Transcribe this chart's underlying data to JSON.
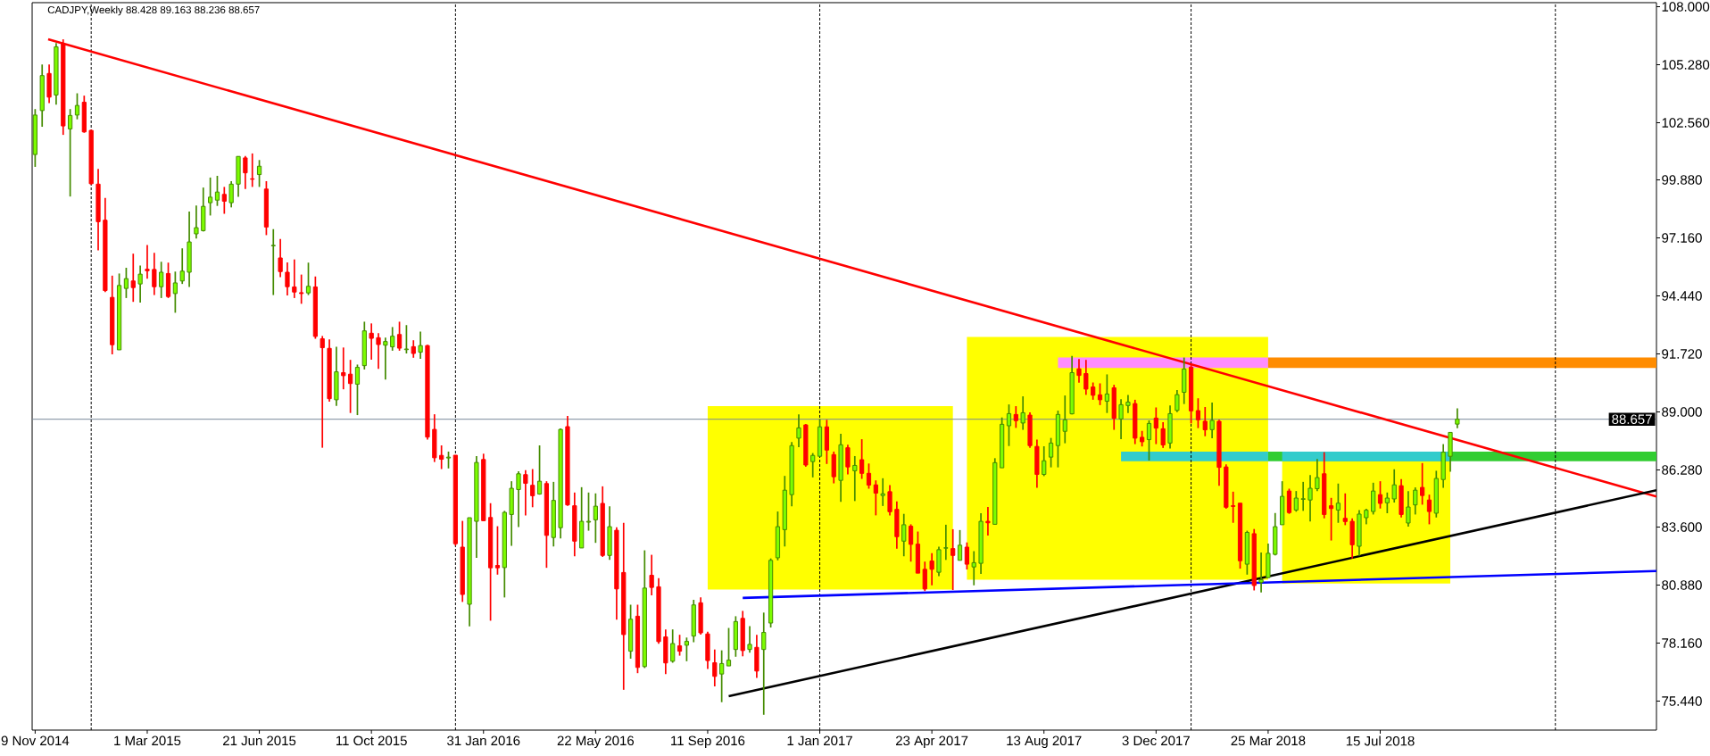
{
  "chart_data": {
    "type": "candlestick",
    "title": "CADJPY,Weekly 88.428 89.163 88.236 88.657",
    "x": [
      "2014-11-09",
      "2014-11-16",
      "2014-11-23",
      "2014-11-30",
      "2014-12-07",
      "2014-12-14",
      "2014-12-21",
      "2014-12-28",
      "2015-01-04",
      "2015-01-11",
      "2015-01-18",
      "2015-01-25",
      "2015-02-01",
      "2015-02-08",
      "2015-02-15",
      "2015-02-22",
      "2015-03-01",
      "2015-03-08",
      "2015-03-15",
      "2015-03-22",
      "2015-03-29",
      "2015-04-05",
      "2015-04-12",
      "2015-04-19",
      "2015-04-26",
      "2015-05-03",
      "2015-05-10",
      "2015-05-17",
      "2015-05-24",
      "2015-05-31",
      "2015-06-07",
      "2015-06-14",
      "2015-06-21",
      "2015-06-28",
      "2015-07-05",
      "2015-07-12",
      "2015-07-19",
      "2015-07-26",
      "2015-08-02",
      "2015-08-09",
      "2015-08-16",
      "2015-08-23",
      "2015-08-30",
      "2015-09-06",
      "2015-09-13",
      "2015-09-20",
      "2015-09-27",
      "2015-10-04",
      "2015-10-11",
      "2015-10-18",
      "2015-10-25",
      "2015-11-01",
      "2015-11-08",
      "2015-11-15",
      "2015-11-22",
      "2015-11-29",
      "2015-12-06",
      "2015-12-13",
      "2015-12-20",
      "2015-12-27",
      "2016-01-03",
      "2016-01-10",
      "2016-01-17",
      "2016-01-24",
      "2016-01-31",
      "2016-02-07",
      "2016-02-14",
      "2016-02-21",
      "2016-02-28",
      "2016-03-06",
      "2016-03-13",
      "2016-03-20",
      "2016-03-27",
      "2016-04-03",
      "2016-04-10",
      "2016-04-17",
      "2016-04-24",
      "2016-05-01",
      "2016-05-08",
      "2016-05-15",
      "2016-05-22",
      "2016-05-29",
      "2016-06-05",
      "2016-06-12",
      "2016-06-19",
      "2016-06-26",
      "2016-07-03",
      "2016-07-10",
      "2016-07-17",
      "2016-07-24",
      "2016-07-31",
      "2016-08-07",
      "2016-08-14",
      "2016-08-21",
      "2016-08-28",
      "2016-09-04",
      "2016-09-11",
      "2016-09-18",
      "2016-09-25",
      "2016-10-02",
      "2016-10-09",
      "2016-10-16",
      "2016-10-23",
      "2016-10-30",
      "2016-11-06",
      "2016-11-13",
      "2016-11-20",
      "2016-11-27",
      "2016-12-04",
      "2016-12-11",
      "2016-12-18",
      "2016-12-25",
      "2017-01-01",
      "2017-01-08",
      "2017-01-15",
      "2017-01-22",
      "2017-01-29",
      "2017-02-05",
      "2017-02-12",
      "2017-02-19",
      "2017-02-26",
      "2017-03-05",
      "2017-03-12",
      "2017-03-19",
      "2017-03-26",
      "2017-04-02",
      "2017-04-09",
      "2017-04-16",
      "2017-04-23",
      "2017-04-30",
      "2017-05-07",
      "2017-05-14",
      "2017-05-21",
      "2017-05-28",
      "2017-06-04",
      "2017-06-11",
      "2017-06-18",
      "2017-06-25",
      "2017-07-02",
      "2017-07-09",
      "2017-07-16",
      "2017-07-23",
      "2017-07-30",
      "2017-08-06",
      "2017-08-13",
      "2017-08-20",
      "2017-08-27",
      "2017-09-03",
      "2017-09-10",
      "2017-09-17",
      "2017-09-24",
      "2017-10-01",
      "2017-10-08",
      "2017-10-15",
      "2017-10-22",
      "2017-10-29",
      "2017-11-05",
      "2017-11-12",
      "2017-11-19",
      "2017-11-26",
      "2017-12-03",
      "2017-12-10",
      "2017-12-17",
      "2017-12-24",
      "2017-12-31",
      "2018-01-07",
      "2018-01-14",
      "2018-01-21",
      "2018-01-28",
      "2018-02-04",
      "2018-02-11",
      "2018-02-18",
      "2018-02-25",
      "2018-03-04",
      "2018-03-11",
      "2018-03-18",
      "2018-03-25",
      "2018-04-01",
      "2018-04-08",
      "2018-04-15",
      "2018-04-22",
      "2018-04-29",
      "2018-05-06",
      "2018-05-13",
      "2018-05-20",
      "2018-05-27",
      "2018-06-03",
      "2018-06-10",
      "2018-06-17",
      "2018-06-24",
      "2018-07-01",
      "2018-07-08",
      "2018-07-15",
      "2018-07-22",
      "2018-07-29",
      "2018-08-05",
      "2018-08-12",
      "2018-08-19",
      "2018-08-26",
      "2018-09-02",
      "2018-09-09",
      "2018-09-16",
      "2018-09-23",
      "2018-09-30"
    ],
    "ohlc": [
      [
        101.07,
        103.2,
        100.49,
        102.92
      ],
      [
        103.13,
        105.29,
        102.37,
        104.77
      ],
      [
        104.87,
        105.29,
        103.48,
        103.76
      ],
      [
        103.86,
        106.3,
        103.41,
        106.12
      ],
      [
        106.26,
        106.47,
        101.99,
        102.41
      ],
      [
        102.27,
        103.2,
        99.1,
        102.9
      ],
      [
        102.92,
        103.94,
        102.72,
        103.37
      ],
      [
        103.52,
        103.83,
        102.09,
        102.13
      ],
      [
        102.2,
        102.23,
        99.66,
        99.7
      ],
      [
        99.68,
        100.39,
        96.57,
        97.92
      ],
      [
        97.99,
        99.03,
        94.62,
        94.69
      ],
      [
        94.37,
        95.39,
        91.7,
        92.15
      ],
      [
        91.91,
        95.49,
        91.91,
        94.93
      ],
      [
        94.79,
        95.76,
        94.34,
        95.25
      ],
      [
        95.14,
        96.42,
        94.16,
        94.83
      ],
      [
        95.0,
        95.86,
        94.13,
        95.46
      ],
      [
        95.69,
        96.83,
        95.25,
        95.62
      ],
      [
        95.68,
        96.46,
        94.48,
        94.87
      ],
      [
        94.87,
        96.04,
        94.34,
        95.55
      ],
      [
        95.49,
        96.0,
        94.34,
        94.41
      ],
      [
        94.55,
        95.58,
        93.65,
        95.05
      ],
      [
        95.14,
        96.67,
        95.0,
        95.6
      ],
      [
        95.55,
        98.4,
        94.86,
        96.97
      ],
      [
        97.35,
        98.68,
        97.13,
        97.64
      ],
      [
        97.5,
        99.52,
        97.46,
        98.64
      ],
      [
        98.81,
        99.99,
        98.21,
        99.07
      ],
      [
        98.93,
        100.07,
        98.66,
        99.31
      ],
      [
        99.2,
        99.55,
        98.29,
        98.88
      ],
      [
        98.81,
        99.82,
        98.59,
        99.68
      ],
      [
        99.68,
        100.98,
        99.09,
        100.98
      ],
      [
        100.91,
        101.0,
        99.45,
        100.21
      ],
      [
        99.93,
        101.12,
        99.55,
        99.91
      ],
      [
        100.13,
        100.81,
        99.55,
        100.52
      ],
      [
        99.45,
        99.82,
        97.29,
        97.67
      ],
      [
        96.79,
        97.57,
        94.48,
        96.81
      ],
      [
        96.22,
        97.11,
        95.32,
        95.58
      ],
      [
        95.55,
        96.01,
        94.46,
        94.87
      ],
      [
        94.86,
        96.15,
        94.34,
        94.62
      ],
      [
        94.59,
        95.44,
        94.07,
        94.55
      ],
      [
        94.58,
        96.0,
        94.48,
        94.89
      ],
      [
        94.86,
        95.35,
        92.43,
        92.54
      ],
      [
        92.43,
        92.56,
        87.32,
        92.01
      ],
      [
        91.98,
        92.4,
        89.48,
        89.62
      ],
      [
        89.57,
        92.06,
        89.28,
        90.88
      ],
      [
        90.84,
        92.02,
        90.06,
        90.7
      ],
      [
        90.77,
        91.44,
        88.95,
        90.33
      ],
      [
        90.3,
        91.22,
        88.85,
        91.09
      ],
      [
        91.17,
        93.23,
        90.99,
        92.8
      ],
      [
        92.69,
        93.15,
        91.45,
        92.45
      ],
      [
        92.48,
        92.69,
        91.02,
        92.16
      ],
      [
        92.13,
        92.48,
        90.52,
        92.3
      ],
      [
        92.05,
        92.98,
        91.87,
        92.55
      ],
      [
        92.63,
        93.23,
        91.87,
        91.99
      ],
      [
        91.92,
        93.07,
        91.74,
        91.95
      ],
      [
        92.06,
        92.36,
        91.54,
        91.74
      ],
      [
        91.8,
        92.77,
        91.49,
        92.11
      ],
      [
        92.11,
        92.15,
        87.7,
        87.82
      ],
      [
        88.18,
        88.89,
        86.65,
        86.85
      ],
      [
        86.96,
        87.43,
        86.32,
        86.78
      ],
      [
        86.84,
        87.14,
        86.35,
        86.88
      ],
      [
        86.97,
        86.97,
        82.73,
        82.82
      ],
      [
        82.66,
        83.89,
        80.09,
        80.44
      ],
      [
        79.98,
        84.04,
        78.94,
        84.04
      ],
      [
        83.87,
        86.93,
        82.16,
        86.63
      ],
      [
        86.77,
        87.04,
        83.9,
        83.9
      ],
      [
        84.05,
        84.72,
        79.21,
        81.69
      ],
      [
        81.8,
        83.64,
        81.37,
        81.69
      ],
      [
        81.7,
        84.36,
        80.3,
        84.29
      ],
      [
        84.19,
        85.75,
        82.72,
        85.42
      ],
      [
        85.36,
        86.22,
        83.6,
        86.1
      ],
      [
        86.06,
        86.27,
        84.15,
        85.65
      ],
      [
        85.56,
        86.32,
        84.53,
        85.07
      ],
      [
        85.15,
        87.43,
        85.12,
        85.75
      ],
      [
        85.64,
        85.75,
        81.69,
        83.21
      ],
      [
        83.11,
        85.72,
        82.69,
        84.85
      ],
      [
        83.57,
        88.23,
        83.07,
        88.18
      ],
      [
        88.31,
        88.81,
        84.6,
        84.64
      ],
      [
        84.6,
        85.22,
        82.23,
        82.94
      ],
      [
        82.62,
        85.47,
        82.62,
        83.87
      ],
      [
        83.83,
        85.22,
        83.43,
        83.87
      ],
      [
        83.94,
        85.18,
        82.86,
        84.58
      ],
      [
        84.71,
        85.51,
        82.2,
        82.27
      ],
      [
        82.27,
        84.57,
        82.06,
        83.62
      ],
      [
        83.45,
        83.59,
        79.26,
        80.7
      ],
      [
        81.47,
        83.8,
        75.97,
        78.56
      ],
      [
        77.78,
        79.96,
        77.43,
        79.28
      ],
      [
        79.42,
        79.96,
        76.75,
        77.02
      ],
      [
        77.06,
        82.51,
        76.99,
        80.74
      ],
      [
        81.34,
        82.3,
        80.4,
        80.77
      ],
      [
        80.8,
        81.2,
        78.13,
        78.23
      ],
      [
        78.45,
        78.8,
        76.71,
        77.23
      ],
      [
        77.31,
        78.8,
        77.24,
        78.14
      ],
      [
        78.03,
        78.55,
        77.57,
        77.78
      ],
      [
        78.06,
        78.42,
        77.31,
        78.24
      ],
      [
        78.49,
        80.19,
        78.2,
        79.95
      ],
      [
        80.05,
        80.3,
        78.56,
        78.64
      ],
      [
        78.59,
        78.69,
        76.95,
        77.34
      ],
      [
        77.24,
        77.86,
        76.13,
        76.6
      ],
      [
        76.71,
        77.82,
        75.39,
        77.2
      ],
      [
        77.09,
        78.87,
        77.09,
        77.36
      ],
      [
        77.86,
        79.42,
        77.52,
        79.17
      ],
      [
        79.32,
        79.67,
        77.54,
        77.81
      ],
      [
        77.86,
        78.96,
        77.71,
        78.1
      ],
      [
        77.96,
        78.55,
        76.53,
        76.85
      ],
      [
        77.86,
        79.59,
        74.8,
        78.66
      ],
      [
        79.1,
        82.13,
        78.89,
        82.04
      ],
      [
        82.16,
        84.33,
        82.04,
        83.62
      ],
      [
        83.48,
        86.0,
        82.69,
        85.33
      ],
      [
        85.12,
        87.59,
        84.57,
        87.42
      ],
      [
        87.77,
        88.88,
        87.35,
        88.25
      ],
      [
        88.39,
        88.43,
        86.43,
        86.51
      ],
      [
        86.67,
        87.07,
        85.93,
        86.96
      ],
      [
        86.92,
        88.67,
        86.92,
        88.3
      ],
      [
        88.3,
        88.63,
        86.56,
        87.21
      ],
      [
        87.0,
        87.14,
        85.65,
        85.96
      ],
      [
        85.79,
        87.97,
        84.78,
        87.46
      ],
      [
        87.32,
        87.46,
        86.07,
        86.42
      ],
      [
        86.24,
        86.93,
        84.82,
        86.49
      ],
      [
        86.76,
        87.72,
        85.86,
        86.12
      ],
      [
        86.12,
        86.58,
        85.4,
        85.57
      ],
      [
        85.58,
        85.79,
        84.15,
        85.19
      ],
      [
        85.08,
        85.89,
        84.59,
        85.16
      ],
      [
        85.26,
        85.57,
        84.15,
        84.32
      ],
      [
        84.43,
        84.8,
        82.59,
        83.15
      ],
      [
        82.94,
        84.22,
        82.23,
        83.71
      ],
      [
        83.64,
        83.73,
        81.98,
        82.79
      ],
      [
        82.8,
        83.39,
        81.44,
        81.44
      ],
      [
        81.62,
        81.98,
        80.6,
        80.7
      ],
      [
        82.01,
        82.38,
        80.87,
        81.62
      ],
      [
        81.48,
        82.68,
        81.3,
        82.54
      ],
      [
        82.61,
        83.71,
        82.06,
        82.63
      ],
      [
        82.59,
        83.5,
        80.65,
        82.27
      ],
      [
        82.04,
        83.46,
        82.04,
        82.75
      ],
      [
        82.66,
        82.88,
        81.61,
        81.86
      ],
      [
        81.73,
        82.47,
        80.87,
        81.93
      ],
      [
        81.9,
        84.25,
        81.4,
        83.87
      ],
      [
        83.87,
        84.54,
        83.2,
        83.8
      ],
      [
        83.73,
        86.83,
        83.73,
        86.62
      ],
      [
        86.38,
        88.74,
        86.38,
        88.42
      ],
      [
        88.35,
        89.35,
        87.4,
        88.92
      ],
      [
        88.88,
        89.27,
        88.25,
        88.59
      ],
      [
        88.48,
        89.73,
        88.16,
        88.96
      ],
      [
        88.85,
        88.98,
        87.32,
        87.42
      ],
      [
        87.38,
        87.7,
        85.44,
        86.07
      ],
      [
        86.07,
        87.39,
        85.99,
        86.71
      ],
      [
        86.88,
        87.78,
        86.4,
        87.54
      ],
      [
        87.42,
        89.06,
        86.4,
        88.88
      ],
      [
        88.09,
        89.77,
        87.53,
        88.63
      ],
      [
        88.91,
        91.63,
        88.88,
        90.84
      ],
      [
        91.02,
        91.48,
        90.37,
        90.71
      ],
      [
        90.8,
        91.44,
        89.8,
        90.07
      ],
      [
        90.17,
        90.38,
        89.57,
        89.78
      ],
      [
        89.8,
        90.34,
        89.32,
        89.57
      ],
      [
        89.5,
        90.76,
        88.95,
        89.84
      ],
      [
        90.13,
        90.27,
        88.16,
        88.7
      ],
      [
        88.67,
        89.6,
        87.72,
        89.34
      ],
      [
        89.3,
        89.8,
        88.95,
        89.46
      ],
      [
        89.39,
        89.57,
        87.49,
        87.77
      ],
      [
        87.81,
        88.11,
        87.38,
        87.6
      ],
      [
        87.7,
        88.6,
        86.72,
        88.46
      ],
      [
        88.71,
        89.21,
        87.49,
        88.24
      ],
      [
        88.21,
        88.52,
        87.31,
        87.45
      ],
      [
        87.54,
        89.3,
        87.28,
        88.92
      ],
      [
        89.07,
        90.02,
        88.99,
        89.81
      ],
      [
        89.92,
        91.55,
        89.37,
        91.01
      ],
      [
        91.1,
        91.24,
        88.46,
        89.05
      ],
      [
        89.06,
        89.64,
        88.24,
        88.63
      ],
      [
        88.56,
        89.23,
        87.86,
        88.16
      ],
      [
        88.17,
        89.44,
        87.77,
        88.6
      ],
      [
        88.56,
        88.63,
        85.54,
        86.4
      ],
      [
        86.42,
        86.54,
        84.46,
        84.53
      ],
      [
        84.6,
        85.26,
        83.8,
        84.57
      ],
      [
        84.72,
        84.72,
        81.65,
        82.02
      ],
      [
        81.86,
        83.43,
        81.37,
        83.35
      ],
      [
        83.29,
        83.51,
        80.63,
        80.86
      ],
      [
        81.01,
        82.41,
        80.53,
        81.13
      ],
      [
        81.23,
        82.83,
        81.23,
        82.37
      ],
      [
        82.32,
        84.26,
        82.27,
        83.62
      ],
      [
        83.71,
        85.75,
        83.71,
        85.04
      ],
      [
        85.29,
        85.4,
        84.22,
        84.28
      ],
      [
        84.4,
        85.29,
        84.32,
        84.96
      ],
      [
        84.9,
        85.72,
        84.36,
        84.93
      ],
      [
        84.87,
        86.04,
        83.86,
        85.42
      ],
      [
        85.4,
        86.79,
        85.29,
        85.92
      ],
      [
        86.1,
        87.11,
        84.01,
        84.19
      ],
      [
        84.6,
        84.97,
        82.97,
        84.47
      ],
      [
        84.4,
        85.64,
        83.8,
        84.72
      ],
      [
        84.01,
        85.18,
        83.69,
        83.86
      ],
      [
        83.87,
        84.01,
        82.13,
        82.77
      ],
      [
        82.7,
        84.4,
        82.25,
        84.21
      ],
      [
        84.04,
        84.46,
        83.73,
        84.39
      ],
      [
        84.33,
        85.68,
        84.19,
        85.29
      ],
      [
        85.12,
        85.75,
        84.47,
        84.71
      ],
      [
        84.74,
        85.22,
        84.25,
        84.96
      ],
      [
        84.92,
        86.31,
        84.75,
        85.58
      ],
      [
        85.54,
        85.85,
        84.05,
        84.19
      ],
      [
        83.79,
        85.29,
        83.62,
        84.54
      ],
      [
        84.64,
        85.46,
        84.19,
        85.33
      ],
      [
        85.46,
        86.6,
        84.65,
        85.08
      ],
      [
        84.87,
        85.12,
        83.73,
        84.33
      ],
      [
        84.25,
        86.24,
        84.05,
        85.88
      ],
      [
        85.83,
        87.49,
        85.44,
        87.11
      ],
      [
        86.92,
        88.04,
        86.2,
        88.04
      ],
      [
        88.428,
        89.163,
        88.236,
        88.657
      ]
    ],
    "colors": [
      "#7cfc00",
      "#7cfc00",
      "#ff0000",
      "#7cfc00",
      "#ff0000",
      "#7cfc00",
      "#7cfc00",
      "#ff0000",
      "#ff0000",
      "#ff0000",
      "#ff0000",
      "#ff0000",
      "#7cfc00",
      "#7cfc00",
      "#ff0000",
      "#7cfc00",
      "#ff0000",
      "#ff0000",
      "#7cfc00",
      "#ff0000",
      "#7cfc00",
      "#7cfc00",
      "#7cfc00",
      "#7cfc00",
      "#7cfc00",
      "#7cfc00",
      "#7cfc00",
      "#ff0000",
      "#7cfc00",
      "#7cfc00",
      "#ff0000",
      "#ff0000",
      "#7cfc00",
      "#ff0000",
      "#7cfc00",
      "#ff0000",
      "#ff0000",
      "#ff0000",
      "#ff0000",
      "#7cfc00",
      "#ff0000",
      "#ff0000",
      "#ff0000",
      "#7cfc00",
      "#ff0000",
      "#ff0000",
      "#7cfc00",
      "#7cfc00",
      "#ff0000",
      "#ff0000",
      "#7cfc00",
      "#7cfc00",
      "#ff0000",
      "#7cfc00",
      "#ff0000",
      "#7cfc00",
      "#ff0000",
      "#ff0000",
      "#ff0000",
      "#7cfc00",
      "#ff0000",
      "#ff0000",
      "#7cfc00",
      "#7cfc00",
      "#ff0000",
      "#ff0000",
      "#ff0000",
      "#7cfc00",
      "#7cfc00",
      "#7cfc00",
      "#ff0000",
      "#ff0000",
      "#7cfc00",
      "#ff0000",
      "#7cfc00",
      "#7cfc00",
      "#ff0000",
      "#ff0000",
      "#7cfc00",
      "#7cfc00",
      "#7cfc00",
      "#ff0000",
      "#7cfc00",
      "#ff0000",
      "#ff0000",
      "#7cfc00",
      "#ff0000",
      "#7cfc00",
      "#ff0000",
      "#ff0000",
      "#ff0000",
      "#7cfc00",
      "#ff0000",
      "#7cfc00",
      "#7cfc00",
      "#ff0000",
      "#ff0000",
      "#ff0000",
      "#7cfc00",
      "#7cfc00",
      "#7cfc00",
      "#ff0000",
      "#7cfc00",
      "#ff0000",
      "#7cfc00",
      "#7cfc00",
      "#7cfc00",
      "#7cfc00",
      "#7cfc00",
      "#7cfc00",
      "#ff0000",
      "#7cfc00",
      "#7cfc00",
      "#ff0000",
      "#ff0000",
      "#7cfc00",
      "#ff0000",
      "#7cfc00",
      "#ff0000",
      "#ff0000",
      "#ff0000",
      "#7cfc00",
      "#ff0000",
      "#ff0000",
      "#7cfc00",
      "#ff0000",
      "#ff0000",
      "#ff0000",
      "#ff0000",
      "#7cfc00",
      "#7cfc00",
      "#ff0000",
      "#7cfc00",
      "#ff0000",
      "#7cfc00",
      "#7cfc00",
      "#ff0000",
      "#7cfc00",
      "#7cfc00",
      "#7cfc00",
      "#ff0000",
      "#7cfc00",
      "#ff0000",
      "#ff0000",
      "#7cfc00",
      "#7cfc00",
      "#7cfc00",
      "#7cfc00",
      "#7cfc00",
      "#ff0000",
      "#ff0000",
      "#ff0000",
      "#ff0000",
      "#7cfc00",
      "#ff0000",
      "#7cfc00",
      "#7cfc00",
      "#ff0000",
      "#ff0000",
      "#7cfc00",
      "#ff0000",
      "#ff0000",
      "#7cfc00",
      "#7cfc00",
      "#7cfc00",
      "#ff0000",
      "#ff0000",
      "#ff0000",
      "#7cfc00",
      "#ff0000",
      "#ff0000",
      "#ff0000",
      "#ff0000",
      "#7cfc00",
      "#ff0000",
      "#7cfc00",
      "#7cfc00",
      "#7cfc00",
      "#7cfc00",
      "#ff0000",
      "#7cfc00",
      "#7cfc00",
      "#7cfc00",
      "#7cfc00",
      "#ff0000",
      "#ff0000",
      "#7cfc00",
      "#ff0000",
      "#ff0000",
      "#7cfc00",
      "#7cfc00",
      "#7cfc00",
      "#ff0000",
      "#7cfc00",
      "#7cfc00",
      "#ff0000",
      "#7cfc00",
      "#7cfc00",
      "#ff0000",
      "#ff0000",
      "#7cfc00",
      "#7cfc00",
      "#7cfc00",
      "#7cfc00"
    ],
    "xlim": [
      "2014-11-06",
      "2019-04-17"
    ],
    "xticks": [
      {
        "value": "2014-11-09",
        "label": "9 Nov 2014"
      },
      {
        "value": "2015-03-01",
        "label": "1 Mar 2015"
      },
      {
        "value": "2015-06-21",
        "label": "21 Jun 2015"
      },
      {
        "value": "2015-10-11",
        "label": "11 Oct 2015"
      },
      {
        "value": "2016-01-31",
        "label": "31 Jan 2016"
      },
      {
        "value": "2016-05-22",
        "label": "22 May 2016"
      },
      {
        "value": "2016-09-11",
        "label": "11 Sep 2016"
      },
      {
        "value": "2017-01-01",
        "label": "1 Jan 2017"
      },
      {
        "value": "2017-04-23",
        "label": "23 Apr 2017"
      },
      {
        "value": "2017-08-13",
        "label": "13 Aug 2017"
      },
      {
        "value": "2017-12-03",
        "label": "3 Dec 2017"
      },
      {
        "value": "2018-03-25",
        "label": "25 Mar 2018"
      },
      {
        "value": "2018-07-15",
        "label": "15 Jul 2018"
      }
    ],
    "ylim": [
      74.08,
      108.19
    ],
    "yticks": [
      {
        "value": 75.44,
        "label": "75.440"
      },
      {
        "value": 78.16,
        "label": "78.160"
      },
      {
        "value": 80.88,
        "label": "80.880"
      },
      {
        "value": 83.6,
        "label": "83.600"
      },
      {
        "value": 86.28,
        "label": "86.280"
      },
      {
        "value": 89.0,
        "label": "89.000"
      },
      {
        "value": 91.72,
        "label": "91.720"
      },
      {
        "value": 94.44,
        "label": "94.440"
      },
      {
        "value": 97.16,
        "label": "97.160"
      },
      {
        "value": 99.88,
        "label": "99.880"
      },
      {
        "value": 102.56,
        "label": "102.560"
      },
      {
        "value": 105.28,
        "label": "105.280"
      },
      {
        "value": 108.0,
        "label": "108.000"
      }
    ],
    "ref_lines": [
      {
        "axis": "x",
        "value": "2015-01-04",
        "color": "#000000",
        "line_style": "dashed"
      },
      {
        "axis": "x",
        "value": "2016-01-03",
        "color": "#000000",
        "line_style": "dashed"
      },
      {
        "axis": "x",
        "value": "2017-01-01",
        "color": "#000000",
        "line_style": "dashed"
      },
      {
        "axis": "x",
        "value": "2018-01-07",
        "color": "#000000",
        "line_style": "dashed"
      },
      {
        "axis": "x",
        "value": "2019-01-06",
        "color": "#000000",
        "line_style": "dashed"
      },
      {
        "axis": "y",
        "value": 88.657,
        "label": "88.657",
        "color": "#778899"
      }
    ],
    "series": [
      {
        "type": "area",
        "color": "#ffff00",
        "x": [
          "2016-09-11",
          "2017-05-14"
        ],
        "values": [
          null,
          null
        ],
        "upper": [
          89.27,
          89.27
        ],
        "lower": [
          80.67,
          80.67
        ]
      },
      {
        "type": "area",
        "color": "#ffff00",
        "x": [
          "2017-05-28",
          "2018-03-25"
        ],
        "values": [
          null,
          null
        ],
        "upper": [
          92.52,
          92.52
        ],
        "lower": [
          81.13,
          81.13
        ]
      },
      {
        "type": "area",
        "color": "#ffff00",
        "x": [
          "2018-04-08",
          "2018-09-23"
        ],
        "values": [
          null,
          null
        ],
        "upper": [
          86.69,
          86.69
        ],
        "lower": [
          80.95,
          80.95
        ]
      },
      {
        "type": "area",
        "color": "#ff8cff",
        "x": [
          "2017-08-27",
          "2018-03-25"
        ],
        "values": [
          null,
          null
        ],
        "upper": [
          91.55,
          91.55
        ],
        "lower": [
          91.06,
          91.06
        ]
      },
      {
        "type": "area",
        "color": "#ff8c00",
        "x": [
          "2018-03-25",
          "2019-04-17"
        ],
        "values": [
          null,
          null
        ],
        "upper": [
          91.55,
          91.55
        ],
        "lower": [
          91.06,
          91.06
        ]
      },
      {
        "type": "area",
        "color": "#33cccc",
        "x": [
          "2017-10-29",
          "2018-03-25"
        ],
        "values": [
          null,
          null
        ],
        "upper": [
          87.14,
          87.14
        ],
        "lower": [
          86.69,
          86.69
        ]
      },
      {
        "type": "area",
        "color": "#32cd32",
        "x": [
          "2018-03-25",
          "2019-04-17"
        ],
        "values": [
          null,
          null
        ],
        "upper": [
          87.14,
          87.14
        ],
        "lower": [
          86.69,
          86.69
        ]
      },
      {
        "type": "area",
        "color": "#33cccc",
        "x": [
          "2018-04-08",
          "2018-09-23"
        ],
        "values": [
          null,
          null
        ],
        "upper": [
          87.14,
          87.14
        ],
        "lower": [
          86.69,
          86.69
        ]
      },
      {
        "type": "line",
        "color": "#ff0000",
        "x": [
          "2014-11-22",
          "2019-04-17"
        ],
        "values": [
          106.47,
          85.03
        ]
      },
      {
        "type": "line",
        "color": "#000000",
        "x": [
          "2016-10-02",
          "2019-04-17"
        ],
        "values": [
          75.67,
          85.33
        ]
      },
      {
        "type": "line",
        "color": "#0000ff",
        "x": [
          "2016-10-16",
          "2019-04-17"
        ],
        "values": [
          80.28,
          81.54
        ]
      }
    ]
  }
}
